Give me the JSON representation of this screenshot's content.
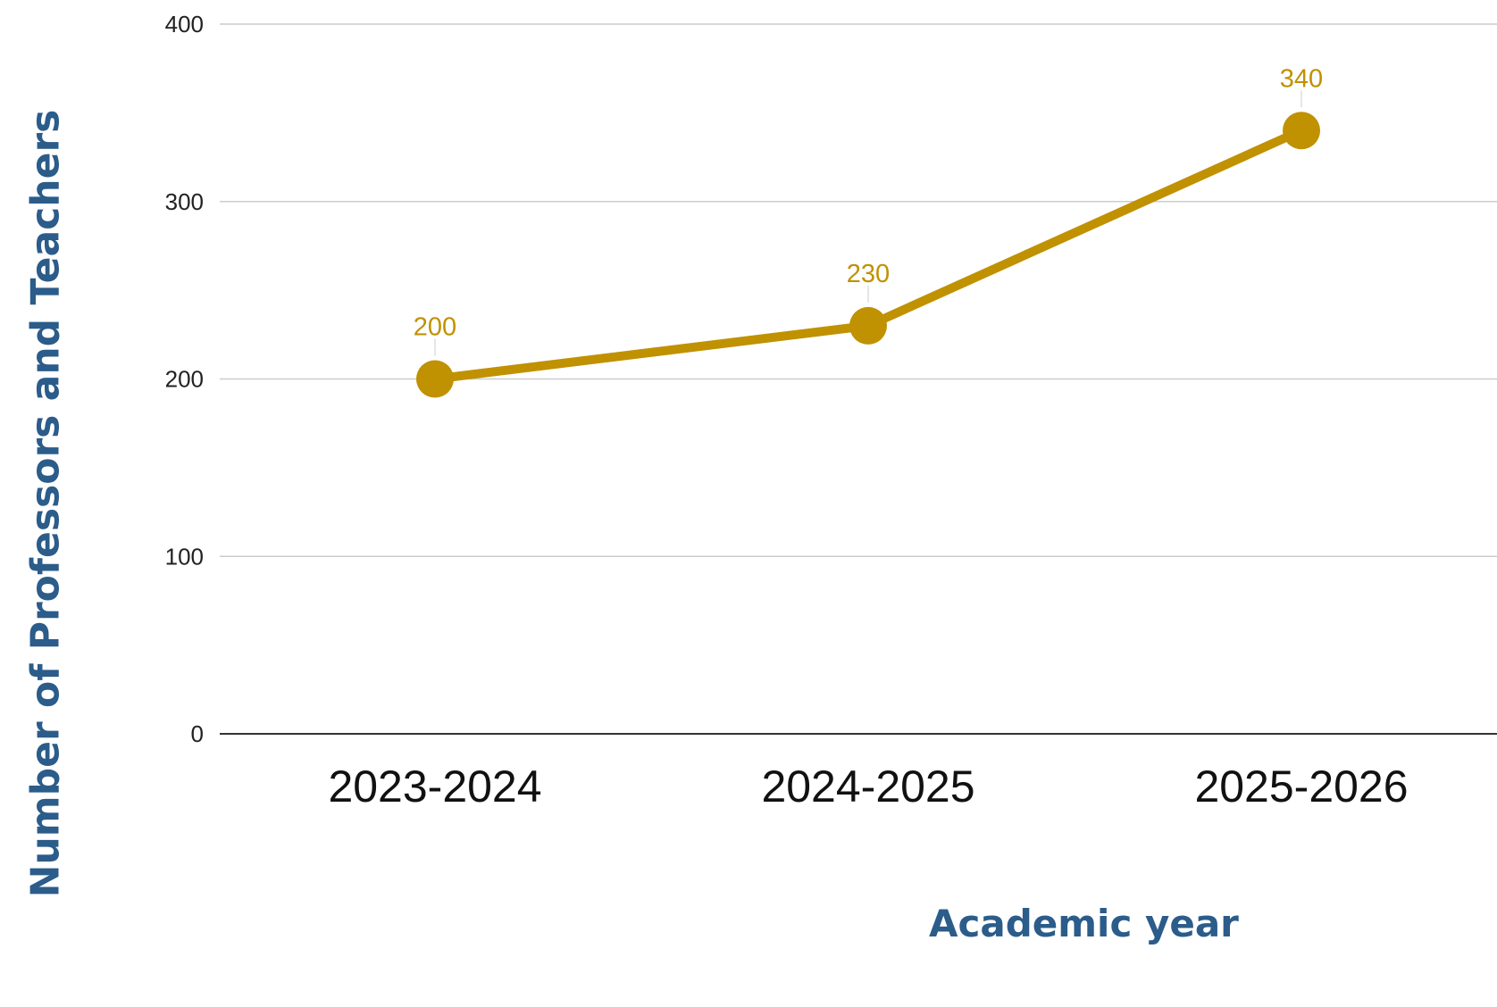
{
  "chart_data": {
    "type": "line",
    "title": "",
    "xlabel": "Academic year",
    "ylabel": "Number of Professors and Teachers",
    "categories": [
      "2023-2024",
      "2024-2025",
      "2025-2026"
    ],
    "series": [
      {
        "values": [
          200,
          230,
          340
        ],
        "color": "#c09100"
      }
    ],
    "ylim": [
      0,
      400
    ],
    "yticks": [
      0,
      100,
      200,
      300,
      400
    ],
    "ytick_labels": [
      "0",
      "100",
      "200",
      "300",
      "400"
    ],
    "data_labels": [
      "200",
      "230",
      "340"
    ],
    "grid": true,
    "legend": "none",
    "colors": {
      "line": "#c09100",
      "axis_title": "#2b5c8a",
      "grid": "#cccccc",
      "baseline": "#333333"
    }
  }
}
